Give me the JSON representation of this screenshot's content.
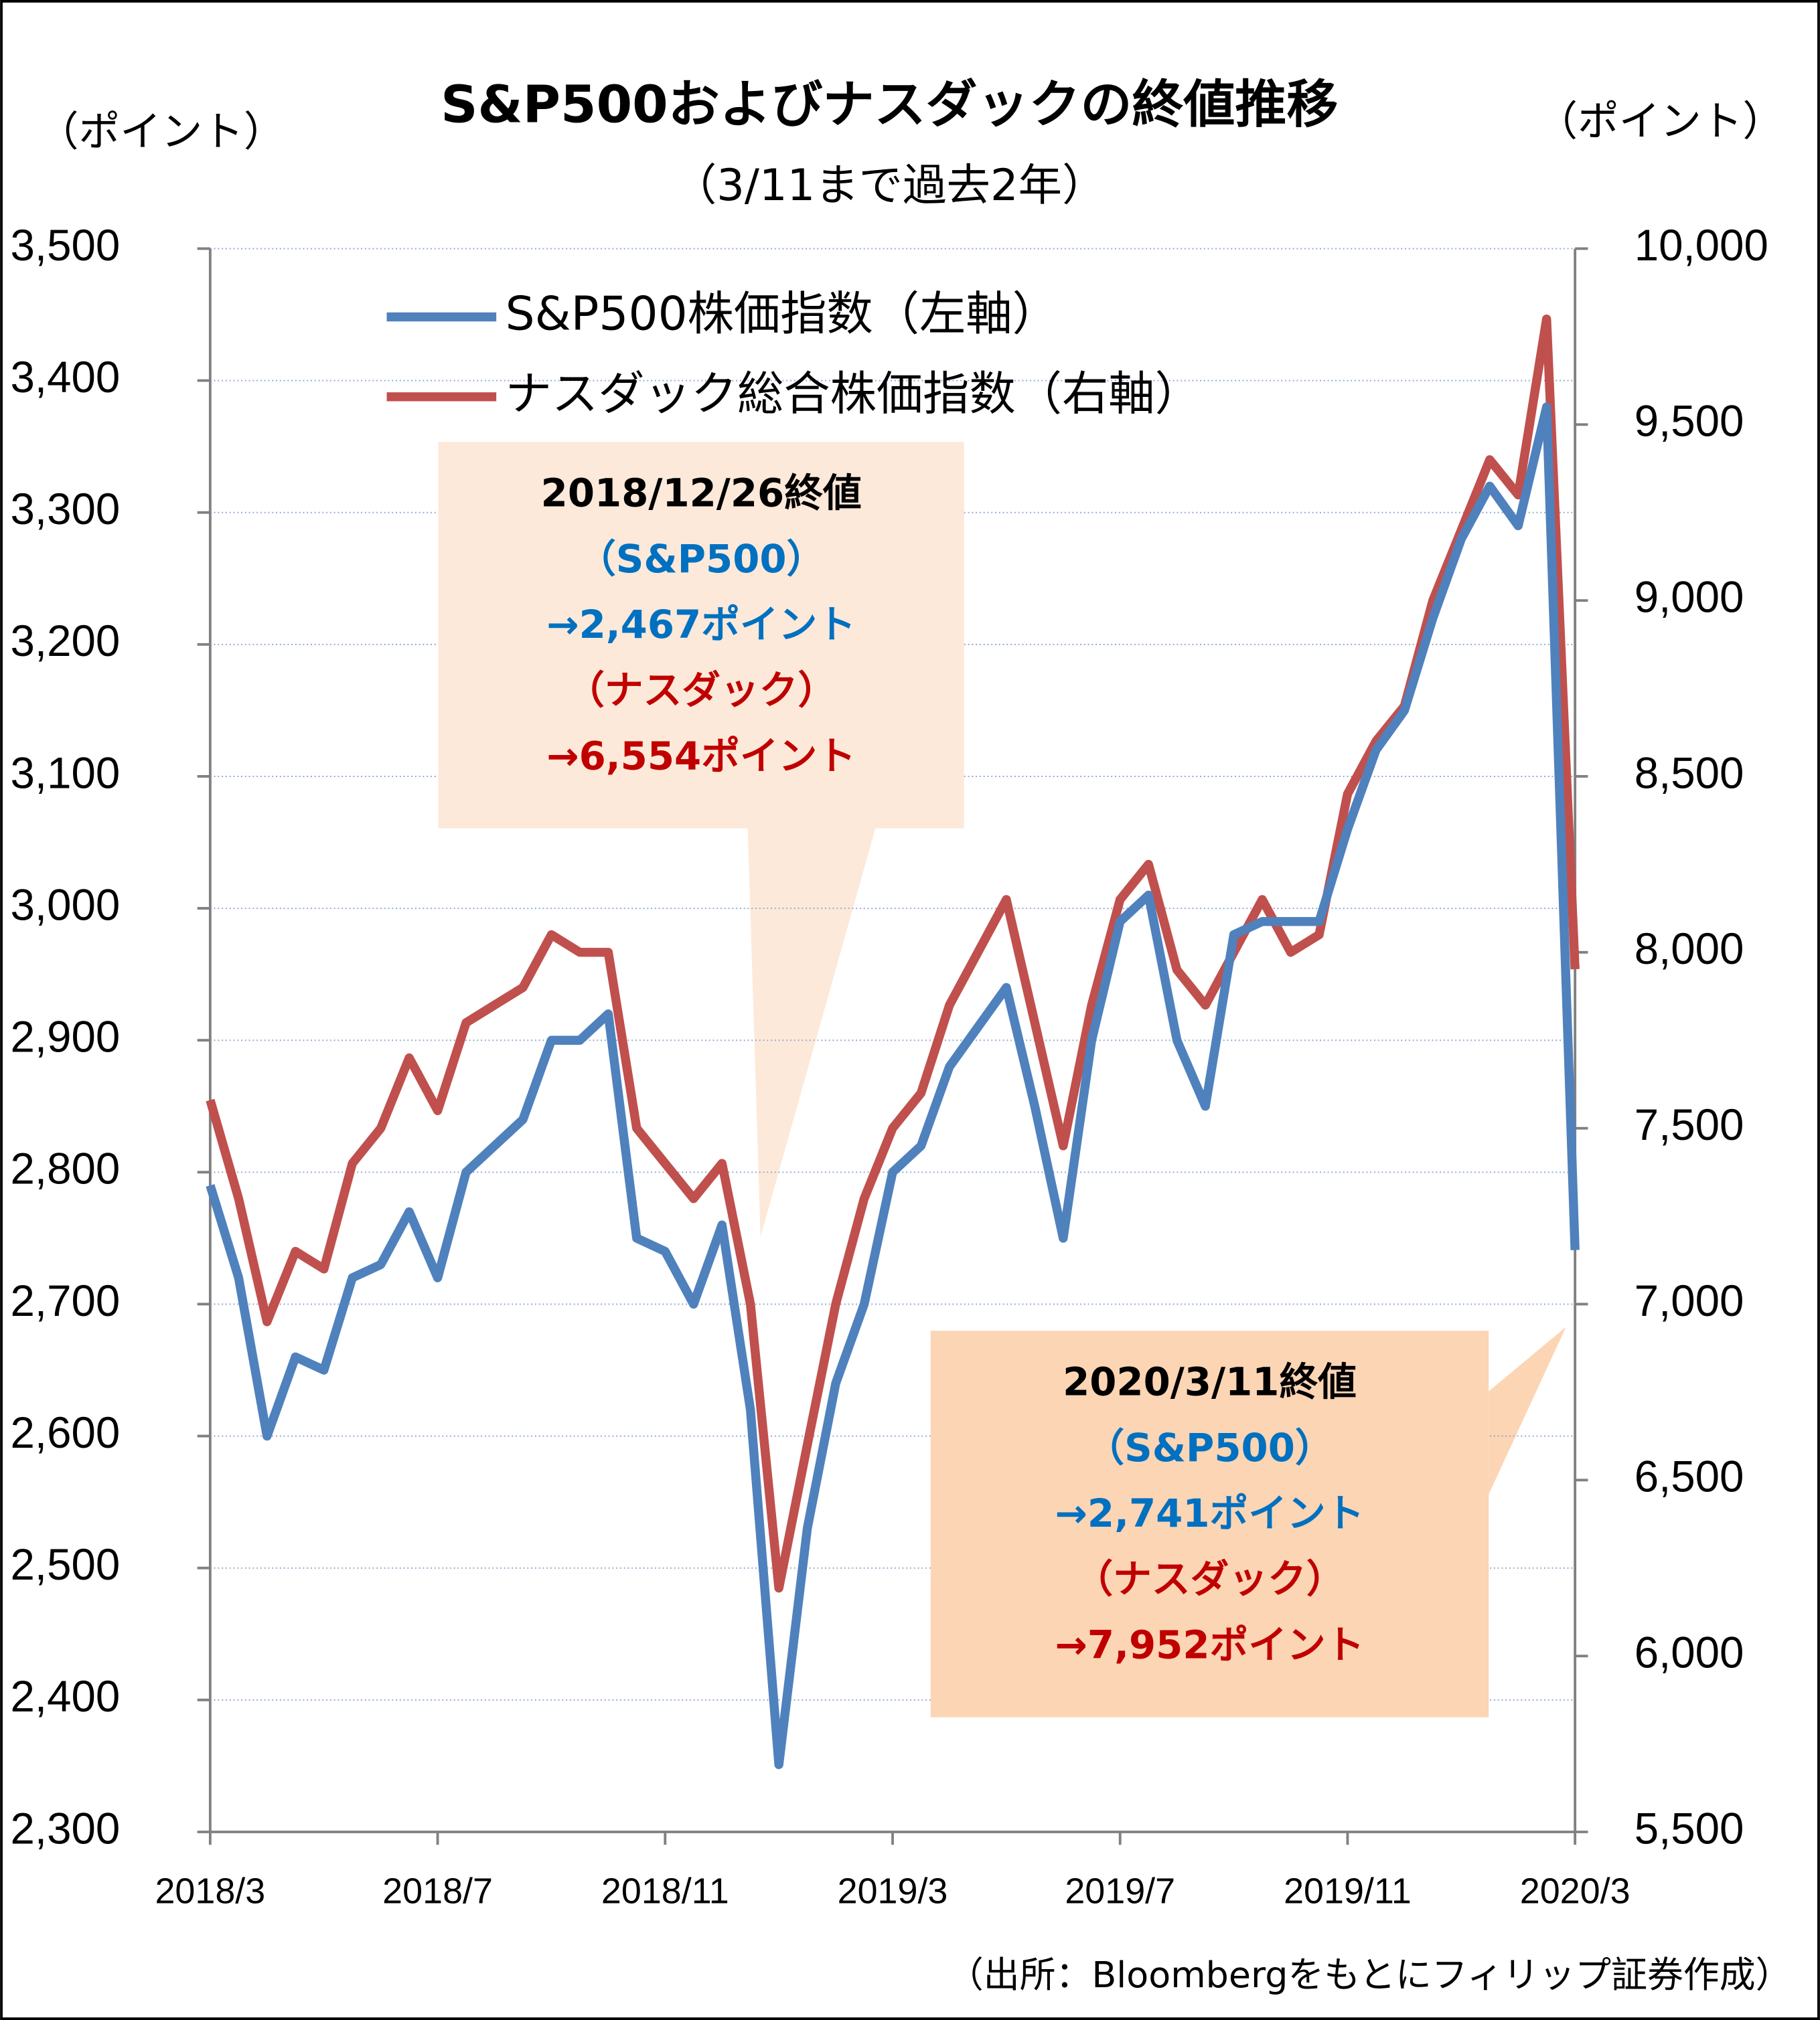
{
  "chart_data": {
    "type": "line",
    "title": "S&P500およびナスダックの終値推移",
    "subtitle": "（3/11まで過去2年）",
    "y_unit_label": "（ポイント）",
    "y2_unit_label": "（ポイント）",
    "categories": [
      "2018/3",
      null,
      null,
      null,
      null,
      null,
      null,
      null,
      "2018/7",
      null,
      null,
      null,
      null,
      null,
      null,
      null,
      "2018/11",
      null,
      null,
      null,
      null,
      null,
      null,
      null,
      "2019/3",
      null,
      null,
      null,
      null,
      null,
      null,
      null,
      "2019/7",
      null,
      null,
      null,
      null,
      null,
      null,
      null,
      "2019/11",
      null,
      null,
      null,
      null,
      null,
      null,
      null,
      "2020/3"
    ],
    "series": [
      {
        "name": "S&P500株価指数（左軸）",
        "color": "#4f81bd",
        "axis": "y",
        "values": [
          2790,
          2720,
          2600,
          2660,
          2650,
          2720,
          2730,
          2770,
          2720,
          2800,
          2820,
          2840,
          2900,
          2900,
          2920,
          2750,
          2740,
          2700,
          2760,
          2620,
          2351,
          2530,
          2640,
          2700,
          2800,
          2820,
          2880,
          2910,
          2940,
          2850,
          2750,
          2900,
          2990,
          3010,
          2900,
          2850,
          2980,
          2990,
          2990,
          2990,
          3060,
          3120,
          3150,
          3220,
          3280,
          3320,
          3290,
          3380,
          2741
        ]
      },
      {
        "name": "ナスダック総合株価指数（右軸）",
        "color": "#c0504d",
        "axis": "y2",
        "values": [
          7580,
          7300,
          6950,
          7150,
          7100,
          7400,
          7500,
          7700,
          7550,
          7800,
          7850,
          7900,
          8050,
          8000,
          8000,
          7500,
          7400,
          7300,
          7400,
          7000,
          6193,
          6600,
          7000,
          7300,
          7500,
          7600,
          7850,
          8000,
          8150,
          7800,
          7450,
          7850,
          8150,
          8250,
          7950,
          7850,
          8000,
          8150,
          8000,
          8050,
          8450,
          8600,
          8700,
          9000,
          9200,
          9400,
          9300,
          9800,
          7952
        ]
      }
    ],
    "ylim": [
      2300,
      3500
    ],
    "yticks": [
      {
        "value": 2300,
        "label": "2,300"
      },
      {
        "value": 2400,
        "label": "2,400"
      },
      {
        "value": 2500,
        "label": "2,500"
      },
      {
        "value": 2600,
        "label": "2,600"
      },
      {
        "value": 2700,
        "label": "2,700"
      },
      {
        "value": 2800,
        "label": "2,800"
      },
      {
        "value": 2900,
        "label": "2,900"
      },
      {
        "value": 3000,
        "label": "3,000"
      },
      {
        "value": 3100,
        "label": "3,100"
      },
      {
        "value": 3200,
        "label": "3,200"
      },
      {
        "value": 3300,
        "label": "3,300"
      },
      {
        "value": 3400,
        "label": "3,400"
      },
      {
        "value": 3500,
        "label": "3,500"
      }
    ],
    "y2lim": [
      5500,
      10000
    ],
    "y2ticks": [
      {
        "value": 5500,
        "label": "5,500"
      },
      {
        "value": 6000,
        "label": "6,000"
      },
      {
        "value": 6500,
        "label": "6,500"
      },
      {
        "value": 7000,
        "label": "7,000"
      },
      {
        "value": 7500,
        "label": "7,500"
      },
      {
        "value": 8000,
        "label": "8,000"
      },
      {
        "value": 8500,
        "label": "8,500"
      },
      {
        "value": 9000,
        "label": "9,000"
      },
      {
        "value": 9500,
        "label": "9,500"
      },
      {
        "value": 10000,
        "label": "10,000"
      }
    ],
    "grid": true,
    "legend": "upper left",
    "annotations": [
      {
        "color": "#fde9d9",
        "lines": [
          {
            "text": "2018/12/26終値",
            "color": "#000000"
          },
          {
            "text": "（S&P500）",
            "color": "#0070c0"
          },
          {
            "text": "→2,467ポイント",
            "color": "#0070c0"
          },
          {
            "text": "（ナスダック）",
            "color": "#c00000"
          },
          {
            "text": "→6,554ポイント",
            "color": "#c00000"
          }
        ]
      },
      {
        "color": "#fcd5b4",
        "lines": [
          {
            "text": "2020/3/11終値",
            "color": "#000000"
          },
          {
            "text": "（S&P500）",
            "color": "#0070c0"
          },
          {
            "text": "→2,741ポイント",
            "color": "#0070c0"
          },
          {
            "text": "（ナスダック）",
            "color": "#c00000"
          },
          {
            "text": "→7,952ポイント",
            "color": "#c00000"
          }
        ]
      }
    ],
    "source": "（出所：Bloombergをもとにフィリップ証券作成）"
  }
}
